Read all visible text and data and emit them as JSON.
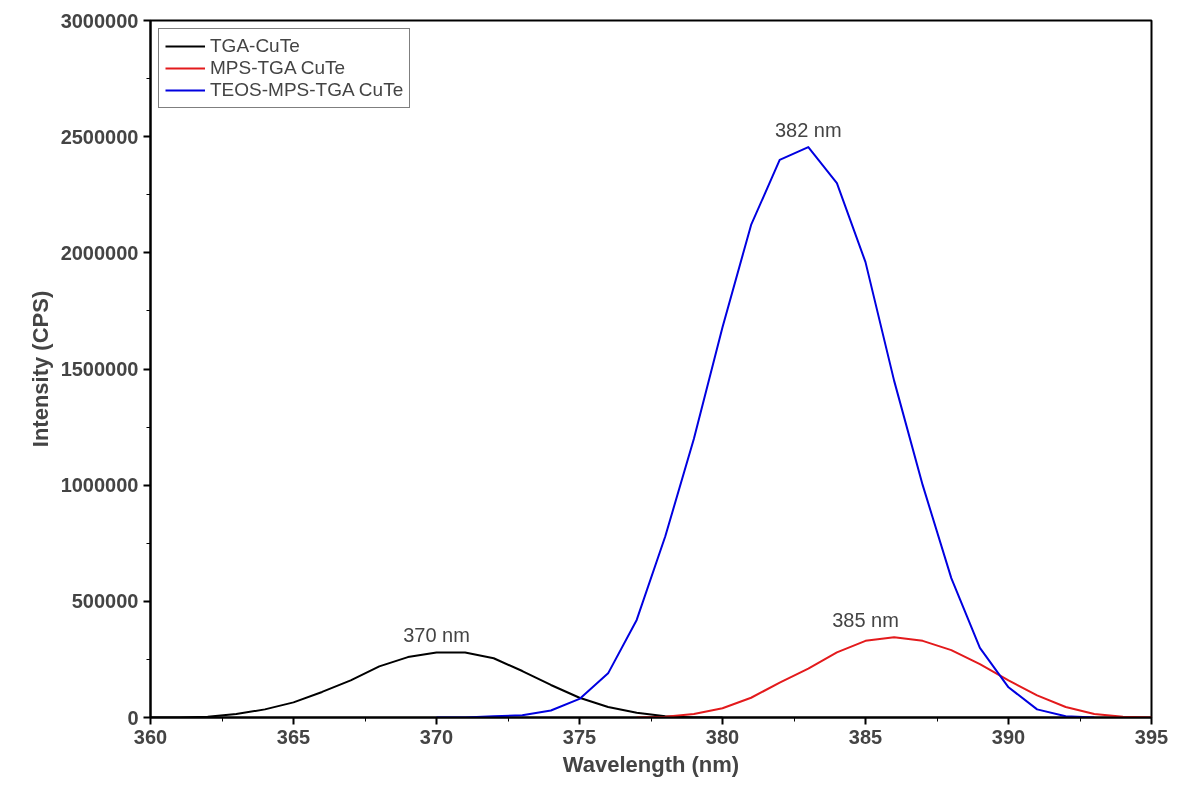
{
  "chart_data": {
    "type": "line",
    "xlabel": "Wavelength (nm)",
    "ylabel": "Intensity (CPS)",
    "xlim": [
      360,
      395
    ],
    "xticks": [
      360,
      365,
      370,
      375,
      380,
      385,
      390,
      395
    ],
    "ylim": [
      0,
      3000000
    ],
    "yticks": [
      0,
      500000,
      1000000,
      1500000,
      2000000,
      2500000,
      3000000
    ],
    "grid": false,
    "legend": "top left",
    "marker": "none",
    "line_style": "solid",
    "series": [
      {
        "name": "TGA-CuTe",
        "color": "#000000",
        "x": [
          360,
          361,
          362,
          363,
          364,
          365,
          366,
          367,
          368,
          369,
          370,
          371,
          372,
          373,
          374,
          375,
          376,
          377,
          378,
          379,
          380
        ],
        "values": [
          0,
          0,
          3000,
          15000,
          35000,
          65000,
          110000,
          160000,
          220000,
          260000,
          280000,
          280000,
          255000,
          200000,
          140000,
          85000,
          45000,
          20000,
          5000,
          0,
          0
        ]
      },
      {
        "name": "MPS-TGA CuTe",
        "color": "#e31a1c",
        "x": [
          377,
          378,
          379,
          380,
          381,
          382,
          383,
          384,
          385,
          386,
          387,
          388,
          389,
          390,
          391,
          392,
          393,
          394,
          395
        ],
        "values": [
          0,
          3000,
          15000,
          40000,
          85000,
          150000,
          210000,
          280000,
          330000,
          345000,
          330000,
          290000,
          230000,
          160000,
          95000,
          45000,
          15000,
          3000,
          0
        ]
      },
      {
        "name": "TEOS-MPS-TGA CuTe",
        "color": "#0000e0",
        "x": [
          370,
          371,
          372,
          373,
          374,
          375,
          376,
          377,
          378,
          379,
          380,
          381,
          382,
          383,
          384,
          385,
          386,
          387,
          388,
          389,
          390,
          391,
          392,
          393
        ],
        "values": [
          0,
          0,
          5000,
          10000,
          30000,
          80000,
          190000,
          420000,
          780000,
          1200000,
          1680000,
          2120000,
          2400000,
          2455000,
          2300000,
          1960000,
          1450000,
          1000000,
          600000,
          300000,
          130000,
          35000,
          5000,
          0
        ]
      }
    ],
    "annotations": [
      {
        "text": "370 nm",
        "x": 370,
        "y": 280000
      },
      {
        "text": "382 nm",
        "x": 383,
        "y": 2455000
      },
      {
        "text": "385 nm",
        "x": 385,
        "y": 345000
      }
    ]
  }
}
